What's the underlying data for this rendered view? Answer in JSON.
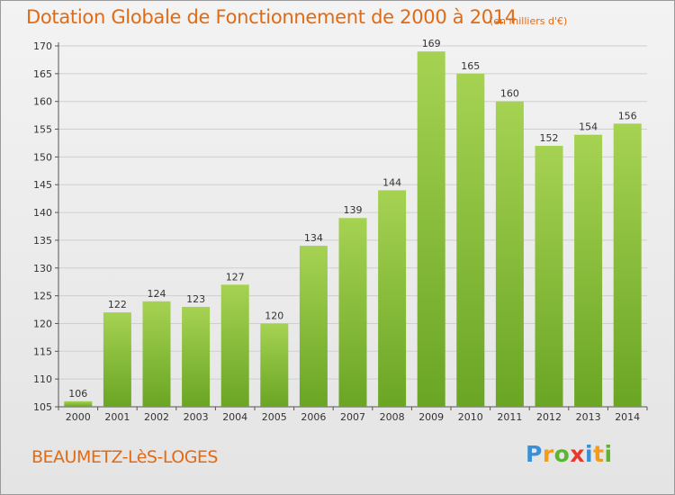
{
  "header": {
    "title": "Dotation Globale de Fonctionnement de 2000 à 2014",
    "unit": "(en milliers d'€)"
  },
  "footer": {
    "town": "BEAUMETZ-LèS-LOGES",
    "logo_text": "Proxiti"
  },
  "colors": {
    "accent": "#e26a13",
    "bar_light": "#a6d252",
    "bar_dark": "#6aa524",
    "logo": [
      "#3a8fd6",
      "#f29b1f",
      "#5cb531",
      "#e8372c",
      "#3a8fd6",
      "#f29b1f",
      "#5cb531"
    ]
  },
  "chart_data": {
    "type": "bar",
    "title": "Dotation Globale de Fonctionnement de 2000 à 2014",
    "categories": [
      "2000",
      "2001",
      "2002",
      "2003",
      "2004",
      "2005",
      "2006",
      "2007",
      "2008",
      "2009",
      "2010",
      "2011",
      "2012",
      "2013",
      "2014"
    ],
    "values": [
      106,
      122,
      124,
      123,
      127,
      120,
      134,
      139,
      144,
      169,
      165,
      160,
      152,
      154,
      156
    ],
    "ylim": [
      105,
      170
    ],
    "yticks": [
      105,
      110,
      115,
      120,
      125,
      130,
      135,
      140,
      145,
      150,
      155,
      160,
      165,
      170
    ],
    "grid": true,
    "xlabel": "",
    "ylabel": ""
  }
}
